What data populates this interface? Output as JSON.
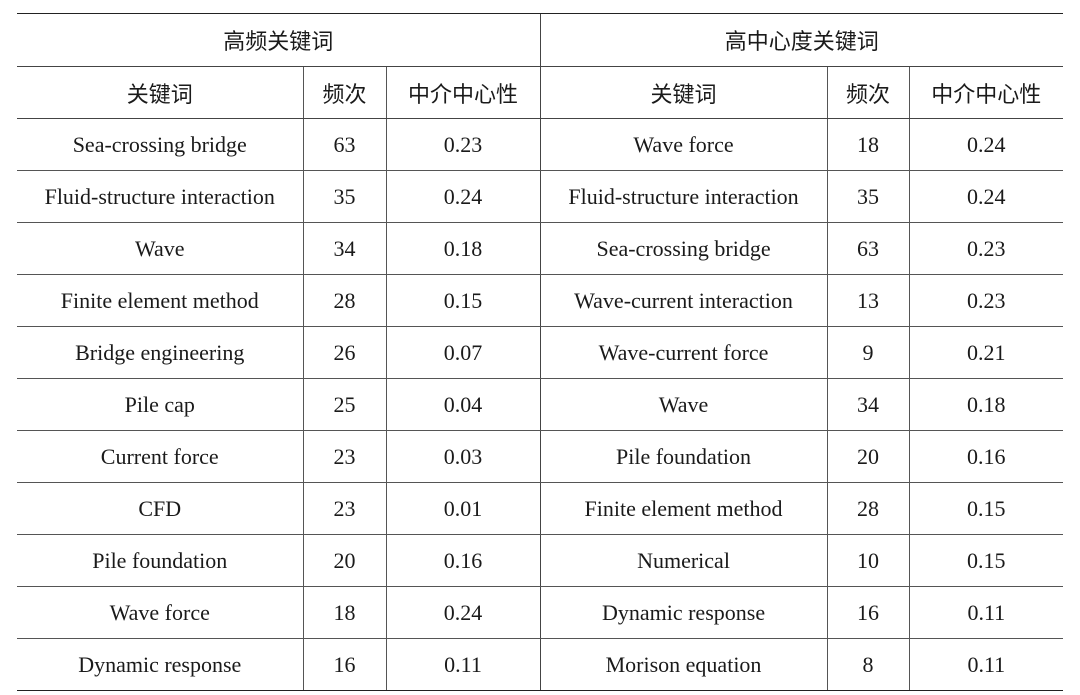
{
  "groups": {
    "left": "高频关键词",
    "right": "高中心度关键词"
  },
  "columns": {
    "left": [
      "关键词",
      "频次",
      "中介中心性"
    ],
    "right": [
      "关键词",
      "频次",
      "中介中心性"
    ]
  },
  "rows": [
    {
      "left": [
        "Sea-crossing bridge",
        "63",
        "0.23"
      ],
      "right": [
        "Wave force",
        "18",
        "0.24"
      ]
    },
    {
      "left": [
        "Fluid-structure interaction",
        "35",
        "0.24"
      ],
      "right": [
        "Fluid-structure interaction",
        "35",
        "0.24"
      ]
    },
    {
      "left": [
        "Wave",
        "34",
        "0.18"
      ],
      "right": [
        "Sea-crossing bridge",
        "63",
        "0.23"
      ]
    },
    {
      "left": [
        "Finite element method",
        "28",
        "0.15"
      ],
      "right": [
        "Wave-current interaction",
        "13",
        "0.23"
      ]
    },
    {
      "left": [
        "Bridge engineering",
        "26",
        "0.07"
      ],
      "right": [
        "Wave-current force",
        "9",
        "0.21"
      ]
    },
    {
      "left": [
        "Pile cap",
        "25",
        "0.04"
      ],
      "right": [
        "Wave",
        "34",
        "0.18"
      ]
    },
    {
      "left": [
        "Current force",
        "23",
        "0.03"
      ],
      "right": [
        "Pile foundation",
        "20",
        "0.16"
      ]
    },
    {
      "left": [
        "CFD",
        "23",
        "0.01"
      ],
      "right": [
        "Finite element method",
        "28",
        "0.15"
      ]
    },
    {
      "left": [
        "Pile foundation",
        "20",
        "0.16"
      ],
      "right": [
        "Numerical",
        "10",
        "0.15"
      ]
    },
    {
      "left": [
        "Wave force",
        "18",
        "0.24"
      ],
      "right": [
        "Dynamic response",
        "16",
        "0.11"
      ]
    },
    {
      "left": [
        "Dynamic response",
        "16",
        "0.11"
      ],
      "right": [
        "Morison equation",
        "8",
        "0.11"
      ]
    }
  ]
}
